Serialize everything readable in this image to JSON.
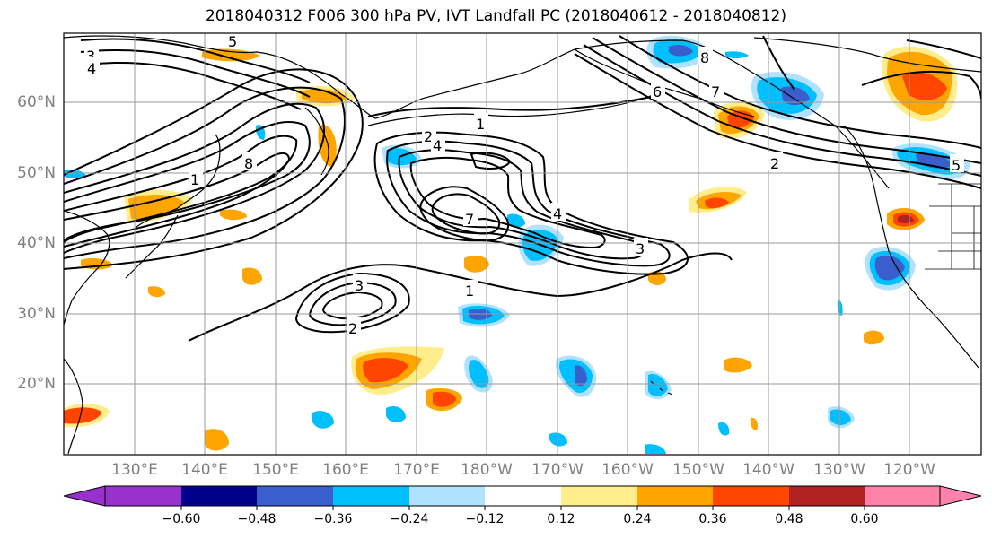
{
  "title": "2018040312 F006 300 hPa PV, IVT Landfall PC (2018040612 - 2018040812)",
  "lat_labels": [
    "60°N",
    "50°N",
    "40°N",
    "30°N",
    "20°N"
  ],
  "lon_labels": [
    "130°E",
    "140°E",
    "150°E",
    "160°E",
    "170°E",
    "180°W",
    "170°W",
    "160°W",
    "150°W",
    "140°W",
    "130°W",
    "120°W"
  ],
  "contour_labels": [
    "1",
    "1",
    "1",
    "2",
    "2",
    "2",
    "3",
    "3",
    "3",
    "4",
    "4",
    "4",
    "5",
    "5",
    "6",
    "7",
    "7",
    "8",
    "8"
  ],
  "colorbar": {
    "ticks": [
      "−0.60",
      "−0.48",
      "−0.36",
      "−0.24",
      "−0.12",
      "0.12",
      "0.24",
      "0.36",
      "0.48",
      "0.60"
    ],
    "colors": [
      "#9932CC",
      "#00008B",
      "#3A5FCD",
      "#00BFFF",
      "#B0E2FF",
      "#FFFFFF",
      "#FFEC8B",
      "#FFA500",
      "#FF4500",
      "#B22222",
      "#FF82AB"
    ]
  },
  "colors": {
    "grid": "#9a9a9a",
    "contour": "#000000",
    "label": "#808080"
  }
}
